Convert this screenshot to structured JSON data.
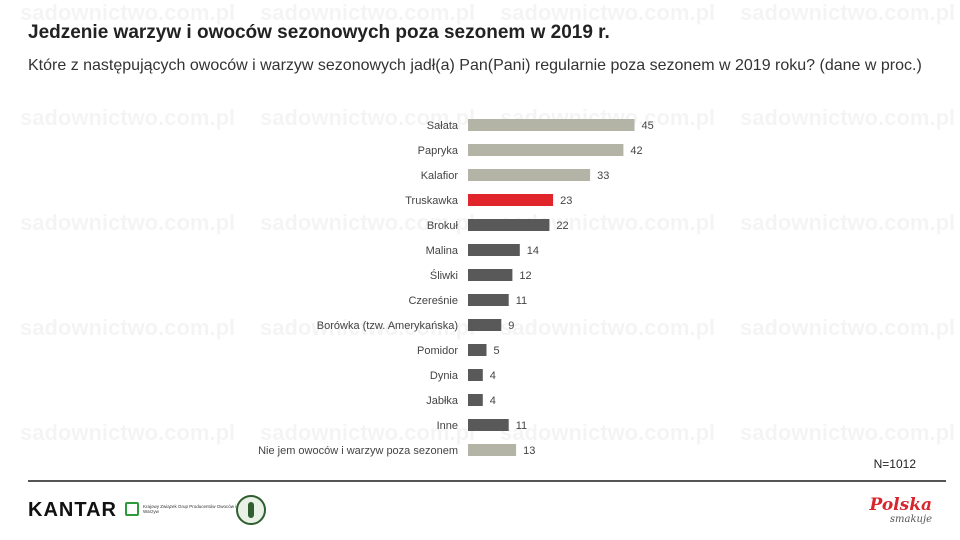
{
  "title": "Jedzenie warzyw i owoców sezonowych poza sezonem w 2019 r.",
  "subtitle": "Które z następujących owoców i warzyw sezonowych jadł(a) Pan(Pani) regularnie poza sezonem w 2019 roku? (dane w proc.)",
  "sample_note": "N=1012",
  "footer": {
    "kantar_logo": "KANTAR",
    "kzgpow_logo": "Krajowy Związek Grup Producentów Owoców i Warzyw",
    "polska_logo_word": "Polska",
    "polska_logo_tagline": "smakuje"
  },
  "watermark": "sadownictwo.com.pl",
  "colors": {
    "light_bar": "#b3b3a6",
    "dark_bar": "#595959",
    "highlight_bar": "#e0262b"
  },
  "chart_data": {
    "type": "bar",
    "orientation": "horizontal",
    "categories": [
      "Sałata",
      "Papryka",
      "Kalafior",
      "Truskawka",
      "Brokuł",
      "Malina",
      "Śliwki",
      "Czereśnie",
      "Borówka (tzw. Amerykańska)",
      "Pomidor",
      "Dynia",
      "Jabłka",
      "Inne",
      "Nie jem owoców i warzyw poza sezonem"
    ],
    "values": [
      45,
      42,
      33,
      23,
      22,
      14,
      12,
      11,
      9,
      5,
      4,
      4,
      11,
      13
    ],
    "bar_colors": [
      "light",
      "light",
      "light",
      "highlight",
      "dark",
      "dark",
      "dark",
      "dark",
      "dark",
      "dark",
      "dark",
      "dark",
      "dark",
      "light"
    ],
    "title": "",
    "xlabel": "",
    "ylabel": "",
    "xlim": [
      0,
      45
    ],
    "grid": false,
    "legend": "none"
  }
}
